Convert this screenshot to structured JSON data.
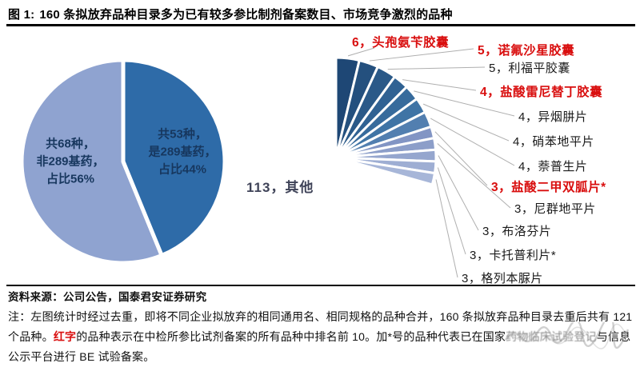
{
  "header": {
    "prefix": "图 1:",
    "title": "160 条拟放弃品种目录多为已有较多参比制剂备案数目、市场竞争激烈的品种"
  },
  "source_line": "资料来源：公司公告，国泰君安证券研究",
  "note": {
    "part1": "注：左图统计时经过去重，即将不同企业拟放弃的相同通用名、相同规格的品种合并，160 条拟放弃品种目录去重后共有 121 个品种。",
    "red_word": "红字",
    "part2": "的品种表示在中检所参比试剂备案的所有品种中排名前 10。加*号的品种代表已在国家",
    "obscured": "药物临床试验登记",
    "part3": "与信息公示平台进行 BE 试验备案。"
  },
  "colors": {
    "red_label": "#D90F0F",
    "leader_line": "#AFAFAF",
    "pie_stroke": "#FFFFFF",
    "inner_label_text": "#17375E"
  },
  "chart_data": [
    {
      "type": "pie",
      "name": "去重后是否289基药占比",
      "total": 121,
      "start_angle": 0,
      "legend_position": "inside",
      "slices": [
        {
          "value": 53,
          "label": "共53种，\n是289基药，\n占比44%",
          "percent": "44%",
          "color": "#2E6BA8"
        },
        {
          "value": 68,
          "label": "共68种，\n非289基药，\n占比56%",
          "percent": "56%",
          "color": "#8FA3D0"
        }
      ]
    },
    {
      "type": "pie",
      "name": "160条拟放弃品种构成",
      "total": 160,
      "start_angle": 0,
      "legend_position": "outside-right",
      "other": {
        "value": 113,
        "label": "其他",
        "color": "#D3D7E9"
      },
      "slices": [
        {
          "value": 6,
          "label": "头孢氨苄胶囊",
          "red": true,
          "color": "#1E4775"
        },
        {
          "value": 5,
          "label": "诺氟沙星胶囊",
          "red": true,
          "color": "#24507E"
        },
        {
          "value": 5,
          "label": "利福平胶囊",
          "red": false,
          "color": "#2A5988"
        },
        {
          "value": 4,
          "label": "盐酸雷尼替丁胶囊",
          "red": true,
          "color": "#306293"
        },
        {
          "value": 4,
          "label": "异烟肼片",
          "red": false,
          "color": "#376B9C"
        },
        {
          "value": 4,
          "label": "硝苯地平片",
          "red": false,
          "color": "#3F74A5"
        },
        {
          "value": 4,
          "label": "萘普生片",
          "red": false,
          "color": "#527FB0"
        },
        {
          "value": 3,
          "label": "盐酸二甲双胍片*",
          "red": true,
          "color": "#8295C4"
        },
        {
          "value": 3,
          "label": "尼群地平片",
          "red": false,
          "color": "#8C9EC9"
        },
        {
          "value": 3,
          "label": "布洛芬片",
          "red": false,
          "color": "#95A6CE"
        },
        {
          "value": 3,
          "label": "卡托普利片*",
          "red": false,
          "color": "#9EAED3"
        },
        {
          "value": 3,
          "label": "格列本脲片",
          "red": false,
          "color": "#A7B6D8"
        }
      ]
    }
  ]
}
